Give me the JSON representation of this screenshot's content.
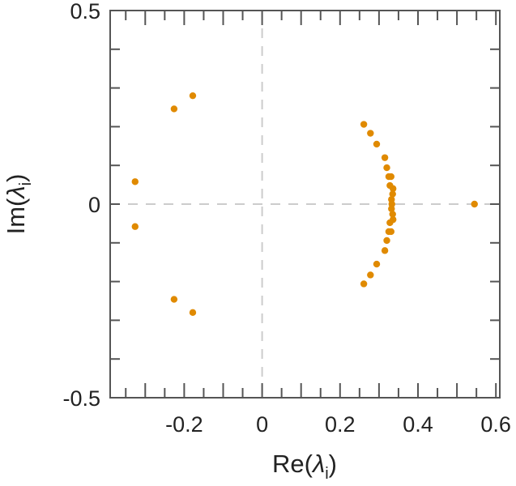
{
  "chart_data": {
    "type": "scatter",
    "title": "",
    "xlabel": "Re(λi)",
    "ylabel": "Im(λi)",
    "xlabel_parts": {
      "prefix": "Re(",
      "symbol": "λ",
      "subscript": "i",
      "suffix": ")"
    },
    "ylabel_parts": {
      "prefix": "Im(",
      "symbol": "λ",
      "subscript": "i",
      "suffix": ")"
    },
    "xlim": [
      -0.39,
      0.61
    ],
    "ylim": [
      -0.5,
      0.5
    ],
    "x_ticks": [
      -0.2,
      0,
      0.2,
      0.4,
      0.6
    ],
    "x_tick_labels": [
      "-0.2",
      "0",
      "0.2",
      "0.4",
      "0.6"
    ],
    "x_minor_step": 0.05,
    "y_ticks": [
      0.5,
      0,
      -0.5
    ],
    "y_tick_labels": [
      "0.5",
      "0",
      "-0.5"
    ],
    "y_minor_step": 0.1,
    "grid": false,
    "reference_lines": {
      "x": 0,
      "y": 0,
      "style": "dashed"
    },
    "marker_color": "#e08a00",
    "points": [
      {
        "x": -0.178,
        "y": 0.28
      },
      {
        "x": -0.226,
        "y": 0.246
      },
      {
        "x": -0.326,
        "y": 0.058
      },
      {
        "x": -0.326,
        "y": -0.058
      },
      {
        "x": -0.226,
        "y": -0.246
      },
      {
        "x": -0.178,
        "y": -0.28
      },
      {
        "x": 0.261,
        "y": 0.206
      },
      {
        "x": 0.278,
        "y": 0.183
      },
      {
        "x": 0.294,
        "y": 0.155
      },
      {
        "x": 0.315,
        "y": 0.12
      },
      {
        "x": 0.32,
        "y": 0.094
      },
      {
        "x": 0.325,
        "y": 0.071
      },
      {
        "x": 0.331,
        "y": 0.071
      },
      {
        "x": 0.328,
        "y": 0.048
      },
      {
        "x": 0.336,
        "y": 0.04
      },
      {
        "x": 0.335,
        "y": 0.026
      },
      {
        "x": 0.332,
        "y": 0.012
      },
      {
        "x": 0.333,
        "y": 0.0
      },
      {
        "x": 0.332,
        "y": -0.012
      },
      {
        "x": 0.335,
        "y": -0.026
      },
      {
        "x": 0.336,
        "y": -0.04
      },
      {
        "x": 0.328,
        "y": -0.048
      },
      {
        "x": 0.325,
        "y": -0.071
      },
      {
        "x": 0.331,
        "y": -0.071
      },
      {
        "x": 0.32,
        "y": -0.094
      },
      {
        "x": 0.315,
        "y": -0.12
      },
      {
        "x": 0.294,
        "y": -0.155
      },
      {
        "x": 0.278,
        "y": -0.183
      },
      {
        "x": 0.261,
        "y": -0.206
      },
      {
        "x": 0.545,
        "y": 0.0
      }
    ]
  }
}
